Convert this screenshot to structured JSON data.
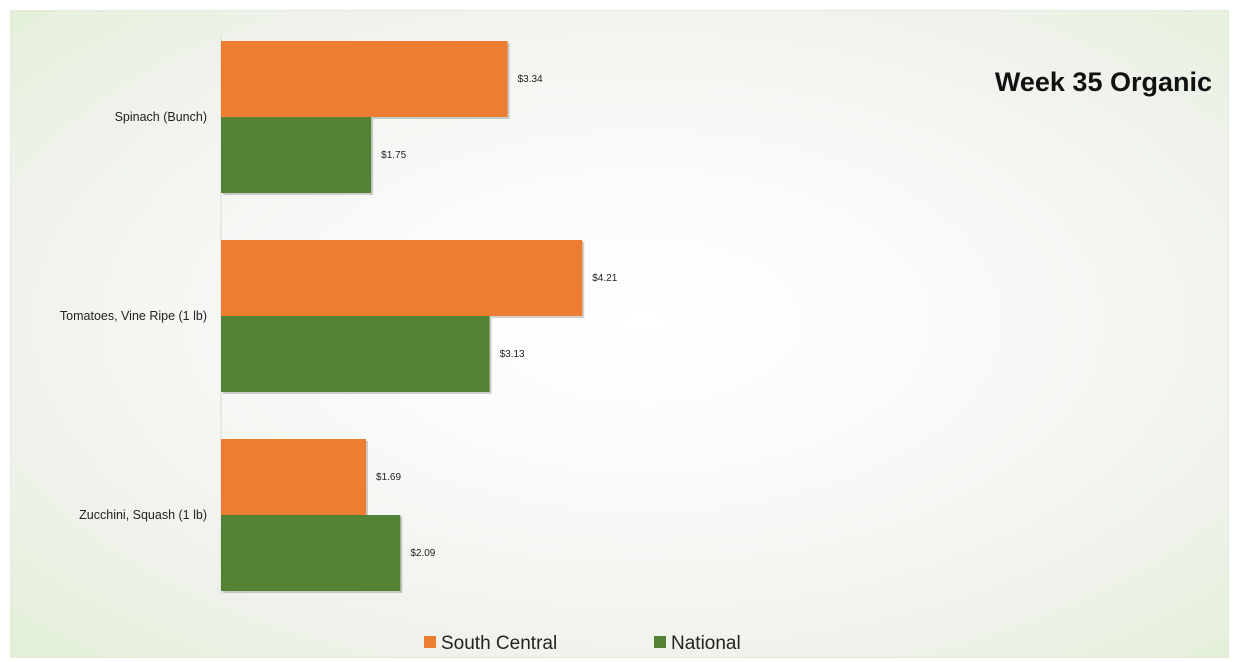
{
  "chart_data": {
    "type": "bar",
    "orientation": "horizontal",
    "title": "Week 35 Organic",
    "categories": [
      "Spinach (Bunch)",
      "Tomatoes, Vine Ripe (1 lb)",
      "Zucchini, Squash (1 lb)"
    ],
    "series": [
      {
        "name": "South Central",
        "values": [
          3.34,
          4.21,
          1.69
        ],
        "labels": [
          "$3.34",
          "$4.21",
          "$1.69"
        ],
        "color": "#ED7D31"
      },
      {
        "name": "National",
        "values": [
          1.75,
          3.13,
          2.09
        ],
        "labels": [
          "$1.75",
          "$3.13",
          "$2.09"
        ],
        "color": "#548235"
      }
    ],
    "xlim": [
      0,
      10.5
    ],
    "grid": false,
    "x_axis_visible": false,
    "legend_position": "bottom"
  }
}
